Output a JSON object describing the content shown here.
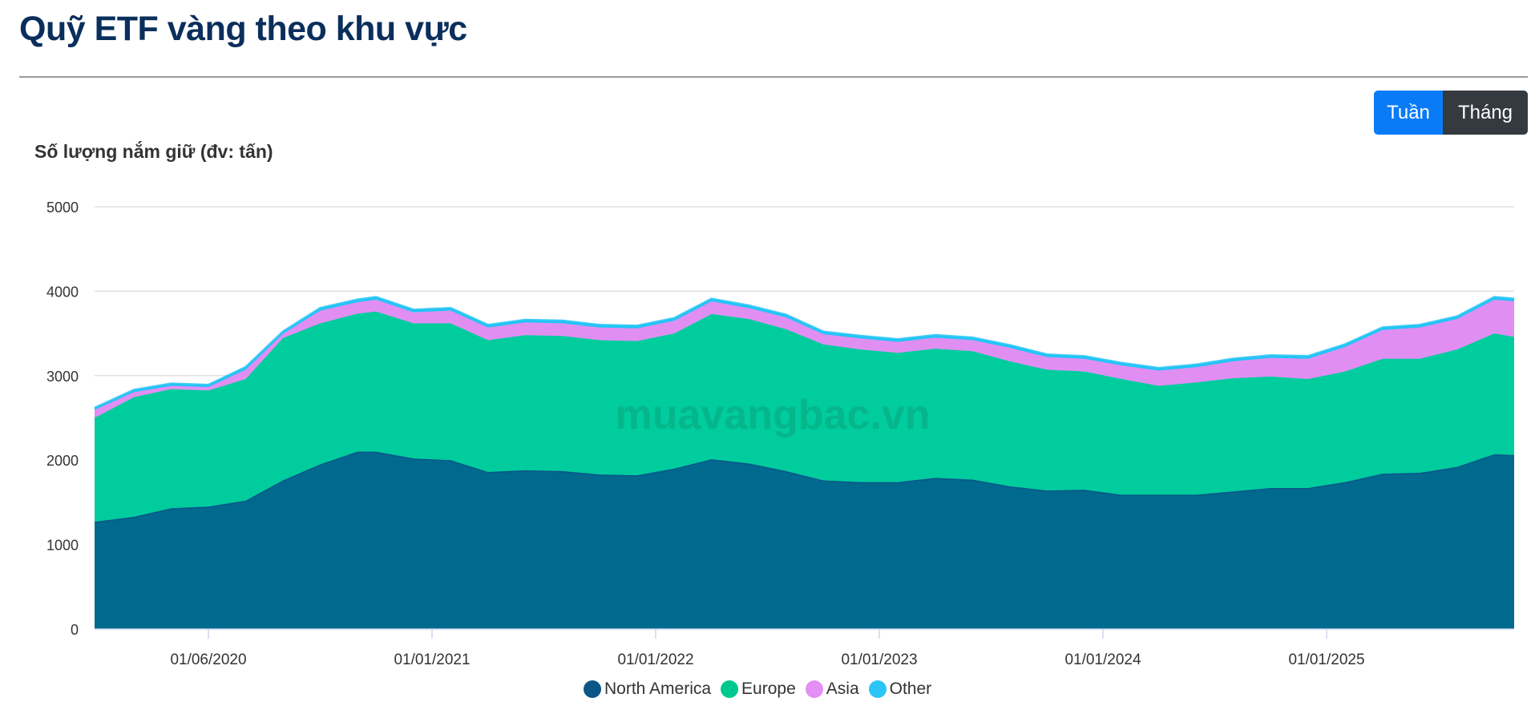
{
  "title": "Quỹ ETF vàng theo khu vực",
  "buttons": {
    "week": "Tuần",
    "month": "Tháng",
    "active": "week"
  },
  "watermark": "muavangbac.vn",
  "chart_data": {
    "type": "area",
    "stacked": true,
    "ylabel": "Số lượng nắm giữ (đv: tấn)",
    "ylim": [
      0,
      5000
    ],
    "yticks": [
      0,
      1000,
      2000,
      3000,
      4000,
      5000
    ],
    "xticks": [
      "01/06/2020",
      "01/01/2021",
      "01/01/2022",
      "01/01/2023",
      "01/01/2024",
      "01/01/2025"
    ],
    "grid": true,
    "legend_position": "bottom",
    "x": [
      "2019-07",
      "2019-09",
      "2019-11",
      "2020-01",
      "2020-03",
      "2020-05",
      "2020-07",
      "2020-09",
      "2020-10",
      "2020-12",
      "2021-02",
      "2021-04",
      "2021-06",
      "2021-08",
      "2021-10",
      "2021-12",
      "2022-02",
      "2022-04",
      "2022-06",
      "2022-08",
      "2022-10",
      "2022-12",
      "2023-02",
      "2023-04",
      "2023-06",
      "2023-08",
      "2023-10",
      "2023-12",
      "2024-02",
      "2024-04",
      "2024-06",
      "2024-08",
      "2024-10",
      "2024-12",
      "2025-02",
      "2025-04",
      "2025-06",
      "2025-08",
      "2025-10",
      "2025-11"
    ],
    "series": [
      {
        "name": "North America",
        "color": "#006a8e",
        "values": [
          1270,
          1330,
          1430,
          1450,
          1520,
          1760,
          1950,
          2100,
          2100,
          2020,
          2000,
          1860,
          1880,
          1870,
          1830,
          1820,
          1900,
          2010,
          1960,
          1870,
          1760,
          1740,
          1740,
          1790,
          1770,
          1690,
          1640,
          1650,
          1590,
          1590,
          1590,
          1630,
          1670,
          1670,
          1740,
          1840,
          1850,
          1920,
          2070,
          2060
        ]
      },
      {
        "name": "Europe",
        "color": "#00cc9e",
        "values": [
          1230,
          1415,
          1410,
          1375,
          1440,
          1685,
          1670,
          1635,
          1660,
          1600,
          1620,
          1560,
          1600,
          1600,
          1590,
          1590,
          1600,
          1720,
          1710,
          1680,
          1610,
          1570,
          1530,
          1530,
          1520,
          1480,
          1430,
          1400,
          1370,
          1290,
          1330,
          1340,
          1320,
          1290,
          1310,
          1360,
          1350,
          1390,
          1430,
          1400
        ]
      },
      {
        "name": "Asia",
        "color": "#e08ef2",
        "values": [
          95,
          60,
          40,
          40,
          110,
          50,
          150,
          135,
          140,
          130,
          150,
          150,
          150,
          150,
          150,
          150,
          150,
          150,
          130,
          140,
          120,
          130,
          130,
          130,
          130,
          160,
          150,
          150,
          160,
          180,
          180,
          200,
          220,
          240,
          290,
          340,
          370,
          360,
          400,
          420
        ]
      },
      {
        "name": "Other",
        "color": "#22c4f5",
        "values": [
          22,
          25,
          25,
          25,
          30,
          25,
          30,
          30,
          30,
          30,
          30,
          30,
          30,
          30,
          30,
          30,
          30,
          30,
          30,
          30,
          30,
          30,
          30,
          30,
          30,
          30,
          30,
          30,
          30,
          30,
          30,
          30,
          30,
          30,
          30,
          30,
          30,
          30,
          30,
          30
        ]
      }
    ]
  }
}
